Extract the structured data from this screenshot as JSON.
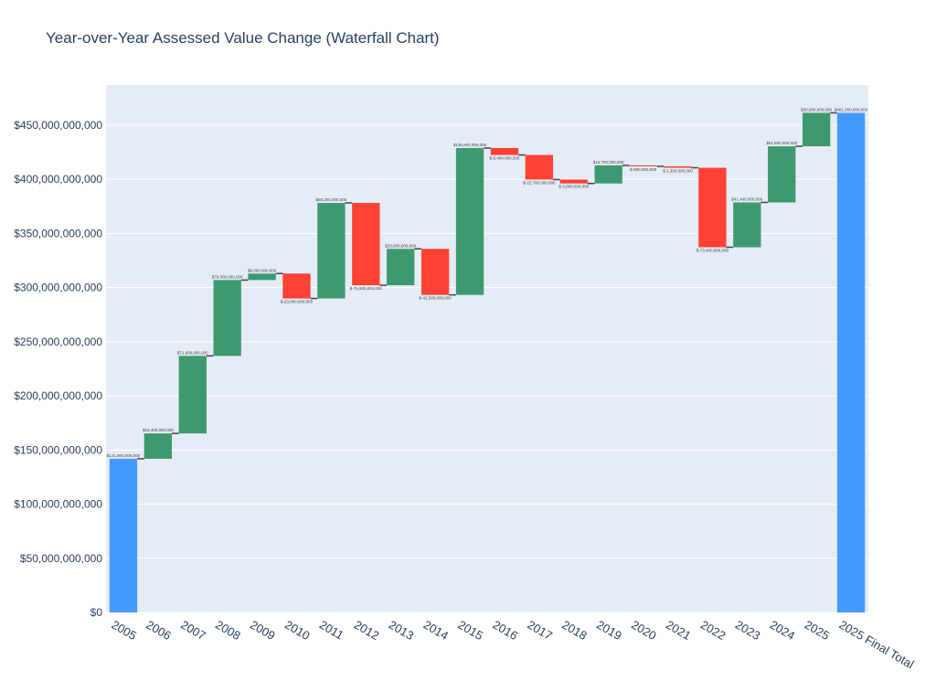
{
  "chart_data": {
    "type": "waterfall",
    "title": "Year-over-Year Assessed Value Change (Waterfall Chart)",
    "categories": [
      "2005",
      "2006",
      "2007",
      "2008",
      "2009",
      "2010",
      "2011",
      "2012",
      "2013",
      "2014",
      "2015",
      "2016",
      "2017",
      "2018",
      "2019",
      "2020",
      "2021",
      "2022",
      "2023",
      "2024",
      "2025",
      "2025 Final Total"
    ],
    "measures": [
      "absolute",
      "relative",
      "relative",
      "relative",
      "relative",
      "relative",
      "relative",
      "relative",
      "relative",
      "relative",
      "relative",
      "relative",
      "relative",
      "relative",
      "relative",
      "relative",
      "relative",
      "relative",
      "relative",
      "relative",
      "relative",
      "total"
    ],
    "values": [
      141900000000,
      23400000000,
      71600000000,
      70000000000,
      6000000000,
      -23000000000,
      88200000000,
      -76000000000,
      33600000000,
      -42500000000,
      135600000000,
      -6400000000,
      -22700000000,
      -3600000000,
      16700000000,
      -900000000,
      -1300000000,
      -73400000000,
      41400000000,
      51800000000,
      30900000000,
      461300000000
    ],
    "value_labels": [
      "$141,900,000,000",
      "$23,400,000,000",
      "$71,600,000,000",
      "$70,000,000,000",
      "$6,000,000,000",
      "$-23,000,000,000",
      "$88,200,000,000",
      "$-76,000,000,000",
      "$33,600,000,000",
      "$-42,500,000,000",
      "$135,600,000,000",
      "$-6,400,000,000",
      "$-22,700,000,000",
      "$-3,600,000,000",
      "$16,700,000,000",
      "$-900,000,000",
      "$-1,300,000,000",
      "$-73,400,000,000",
      "$41,400,000,000",
      "$51,800,000,000",
      "$30,900,000,000",
      "$461,300,000,000"
    ],
    "colors": {
      "increasing": "#3d9970",
      "decreasing": "#ff4136",
      "total": "#4499ff"
    },
    "ylim": [
      0,
      487000000000
    ],
    "yticks": [
      {
        "value": 0,
        "label": "$0"
      },
      {
        "value": 50000000000,
        "label": "$50,000,000,000"
      },
      {
        "value": 100000000000,
        "label": "$100,000,000,000"
      },
      {
        "value": 150000000000,
        "label": "$150,000,000,000"
      },
      {
        "value": 200000000000,
        "label": "$200,000,000,000"
      },
      {
        "value": 250000000000,
        "label": "$250,000,000,000"
      },
      {
        "value": 300000000000,
        "label": "$300,000,000,000"
      },
      {
        "value": 350000000000,
        "label": "$350,000,000,000"
      },
      {
        "value": 400000000000,
        "label": "$400,000,000,000"
      },
      {
        "value": 450000000000,
        "label": "$450,000,000,000"
      }
    ],
    "grid": true
  }
}
